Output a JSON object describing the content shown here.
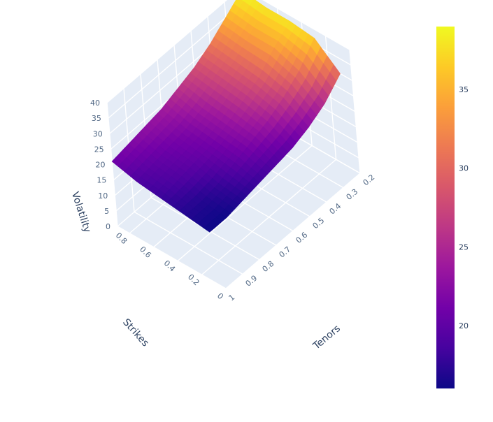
{
  "chart_data": {
    "type": "surface",
    "title": "",
    "axes": {
      "x": {
        "label": "Tenors",
        "ticks": [
          "0.2",
          "0.3",
          "0.4",
          "0.5",
          "0.6",
          "0.7",
          "0.8",
          "0.9",
          "1"
        ],
        "range": [
          0.2,
          1.0
        ]
      },
      "y": {
        "label": "Strikes",
        "ticks": [
          "0",
          "0.2",
          "0.4",
          "0.6",
          "0.8"
        ],
        "range": [
          0,
          0.9
        ]
      },
      "z": {
        "label": "Volatility",
        "ticks": [
          "0",
          "5",
          "10",
          "15",
          "20",
          "25",
          "30",
          "35",
          "40"
        ],
        "range": [
          0,
          40
        ]
      }
    },
    "tenors": [
      0.2,
      0.3,
      0.4,
      0.5,
      0.6,
      0.7,
      0.8,
      0.9,
      1.0
    ],
    "strikes": [
      0.1,
      0.3,
      0.5,
      0.7,
      0.9
    ],
    "z": [
      [
        30,
        37,
        38,
        38,
        39
      ],
      [
        25,
        31,
        34,
        34,
        35
      ],
      [
        22,
        27,
        29,
        30,
        31
      ],
      [
        20,
        24,
        26,
        27,
        28
      ],
      [
        19,
        22,
        23,
        24,
        26
      ],
      [
        18,
        20,
        21,
        22,
        24
      ],
      [
        17,
        18,
        20,
        21,
        23
      ],
      [
        16,
        17,
        19,
        20,
        22
      ],
      [
        16,
        17,
        18,
        19,
        21
      ]
    ],
    "colorscale": [
      "#0d0887",
      "#46039f",
      "#7201a8",
      "#9c179e",
      "#bd3786",
      "#d8576b",
      "#ed7953",
      "#fb9f3a",
      "#fdca26",
      "#f0f921"
    ],
    "colorbar": {
      "min": 16,
      "max": 39,
      "ticks": [
        "20",
        "25",
        "30",
        "35"
      ],
      "tick_values": [
        20,
        25,
        30,
        35
      ]
    },
    "grid": true,
    "legend": "colorbar-right"
  }
}
